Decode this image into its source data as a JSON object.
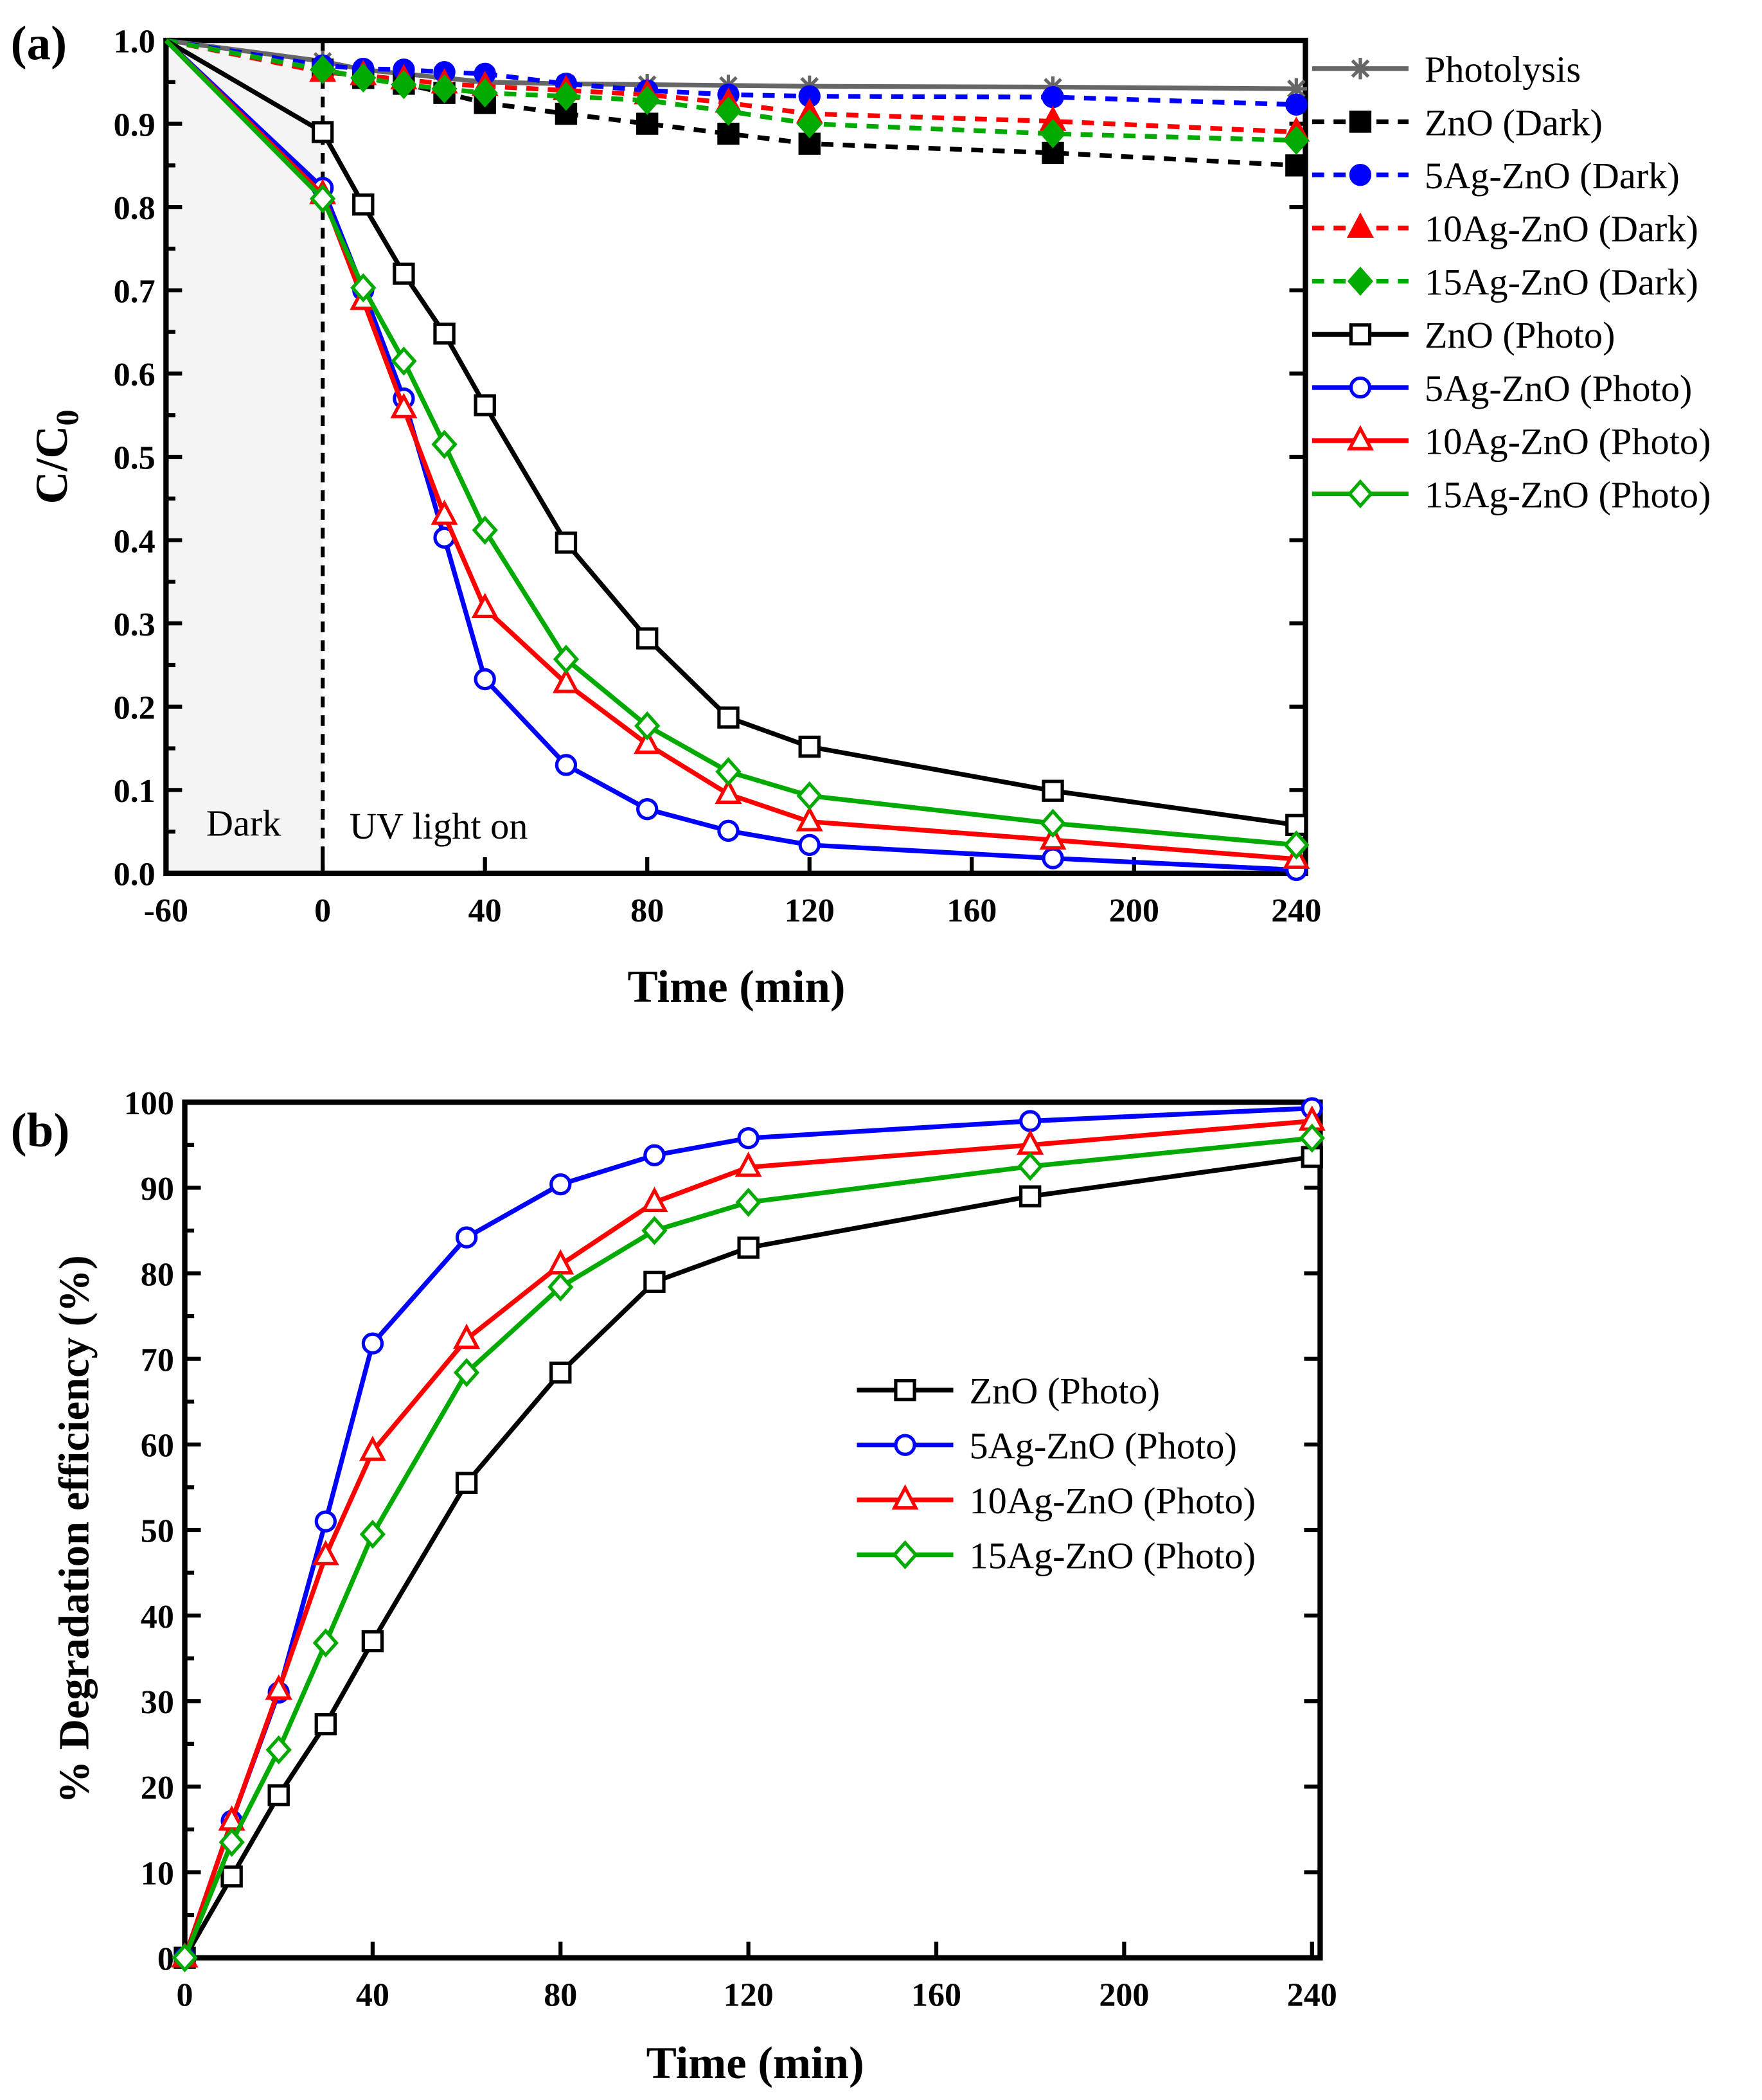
{
  "chart_data": [
    {
      "type": "line",
      "panel_label": "(a)",
      "xlabel": "Time (min)",
      "ylabel_main": "C/C",
      "ylabel_sub": "0",
      "xlim": [
        -60,
        240
      ],
      "ylim": [
        0,
        1.0
      ],
      "x_ticks": [
        "-60",
        "0",
        "40",
        "80",
        "120",
        "160",
        "200",
        "240"
      ],
      "y_ticks": [
        "0.0",
        "0.1",
        "0.2",
        "0.3",
        "0.4",
        "0.5",
        "0.6",
        "0.7",
        "0.8",
        "0.9",
        "1.0"
      ],
      "annotations": {
        "dark": "Dark",
        "light": "UV light on"
      },
      "legend_position": "outside-right",
      "x": [
        -60,
        0,
        10,
        20,
        30,
        40,
        60,
        80,
        100,
        120,
        180,
        240
      ],
      "series": [
        {
          "name": "Photolysis",
          "color": "#666666",
          "style": "solid",
          "marker": "star",
          "values": [
            1.0,
            0.975,
            0.965,
            0.96,
            0.955,
            0.95,
            0.948,
            0.947,
            0.946,
            0.945,
            0.944,
            0.942
          ]
        },
        {
          "name": "ZnO (Dark)",
          "color": "#000000",
          "style": "dashed",
          "marker": "square-filled",
          "values": [
            1.0,
            0.965,
            0.955,
            0.948,
            0.937,
            0.925,
            0.912,
            0.9,
            0.888,
            0.876,
            0.865,
            0.85
          ]
        },
        {
          "name": "5Ag-ZnO (Dark)",
          "color": "#0000ff",
          "style": "dashed",
          "marker": "circle-filled",
          "values": [
            1.0,
            0.97,
            0.966,
            0.965,
            0.962,
            0.96,
            0.948,
            0.94,
            0.935,
            0.933,
            0.932,
            0.923
          ]
        },
        {
          "name": "10Ag-ZnO (Dark)",
          "color": "#ff0000",
          "style": "dashed",
          "marker": "triangle-filled",
          "values": [
            1.0,
            0.962,
            0.958,
            0.953,
            0.948,
            0.945,
            0.94,
            0.935,
            0.925,
            0.912,
            0.903,
            0.89
          ]
        },
        {
          "name": "15Ag-ZnO (Dark)",
          "color": "#00aa00",
          "style": "dashed",
          "marker": "diamond-filled",
          "values": [
            1.0,
            0.965,
            0.955,
            0.947,
            0.942,
            0.937,
            0.933,
            0.928,
            0.915,
            0.9,
            0.888,
            0.88
          ]
        },
        {
          "name": "ZnO (Photo)",
          "color": "#000000",
          "style": "solid",
          "marker": "square-open",
          "values": [
            1.0,
            0.89,
            0.803,
            0.72,
            0.648,
            0.562,
            0.397,
            0.282,
            0.187,
            0.152,
            0.099,
            0.058
          ]
        },
        {
          "name": "5Ag-ZnO (Photo)",
          "color": "#0000ff",
          "style": "solid",
          "marker": "circle-open",
          "values": [
            1.0,
            0.823,
            0.7,
            0.57,
            0.403,
            0.233,
            0.13,
            0.077,
            0.051,
            0.034,
            0.018,
            0.004
          ]
        },
        {
          "name": "10Ag-ZnO (Photo)",
          "color": "#ff0000",
          "style": "solid",
          "marker": "triangle-open",
          "values": [
            1.0,
            0.815,
            0.688,
            0.558,
            0.43,
            0.318,
            0.228,
            0.155,
            0.095,
            0.062,
            0.04,
            0.017
          ]
        },
        {
          "name": "15Ag-ZnO (Photo)",
          "color": "#00aa00",
          "style": "solid",
          "marker": "diamond-open",
          "values": [
            1.0,
            0.81,
            0.703,
            0.615,
            0.515,
            0.412,
            0.257,
            0.177,
            0.122,
            0.093,
            0.06,
            0.034
          ]
        }
      ]
    },
    {
      "type": "line",
      "panel_label": "(b)",
      "xlabel": "Time (min)",
      "ylabel": "% Degradation efficiency (%)",
      "xlim": [
        0,
        240
      ],
      "ylim": [
        0,
        100
      ],
      "x_ticks": [
        "0",
        "40",
        "80",
        "120",
        "160",
        "200",
        "240"
      ],
      "y_ticks": [
        "0",
        "10",
        "20",
        "30",
        "40",
        "50",
        "60",
        "70",
        "80",
        "90",
        "100"
      ],
      "legend_position": "center-right",
      "x": [
        0,
        10,
        20,
        30,
        40,
        60,
        80,
        100,
        120,
        180,
        240
      ],
      "series": [
        {
          "name": "ZnO  (Photo)",
          "color": "#000000",
          "style": "solid",
          "marker": "square-open",
          "values": [
            0,
            9.5,
            19,
            27.3,
            37,
            55.5,
            68.4,
            79,
            83,
            89,
            93.6
          ]
        },
        {
          "name": "5Ag-ZnO (Photo)",
          "color": "#0000ff",
          "style": "solid",
          "marker": "circle-open",
          "values": [
            0,
            16,
            31,
            51,
            71.8,
            84.2,
            90.4,
            93.8,
            95.8,
            97.8,
            99.3
          ]
        },
        {
          "name": "10Ag-ZnO (Photo)",
          "color": "#ff0000",
          "style": "solid",
          "marker": "triangle-open",
          "values": [
            0,
            16,
            31.3,
            47,
            59.2,
            72.3,
            81,
            88.3,
            92.4,
            95,
            97.8
          ]
        },
        {
          "name": "15Ag-ZnO (Photo)",
          "color": "#00aa00",
          "style": "solid",
          "marker": "diamond-open",
          "values": [
            0,
            13.5,
            24.3,
            36.8,
            49.5,
            68.4,
            78.4,
            85,
            88.3,
            92.5,
            95.8
          ]
        }
      ]
    }
  ]
}
